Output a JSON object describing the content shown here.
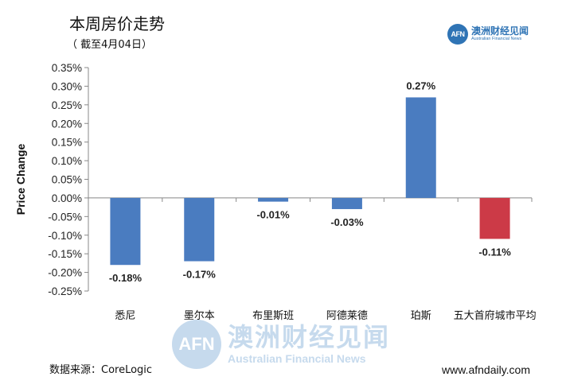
{
  "header": {
    "title": "本周房价走势",
    "subtitle": "（ 截至4月04日）"
  },
  "logo": {
    "badge": "AFN",
    "name_cn": "澳洲财经见闻",
    "name_en": "Australian Financial News"
  },
  "watermark": {
    "badge": "AFN",
    "name_cn": "澳洲财经见闻",
    "name_en": "Australian Financial News"
  },
  "footer": {
    "source": "数据来源：CoreLogic",
    "url": "www.afndaily.com"
  },
  "colors": {
    "positive_bar": "#4a7cc0",
    "average_bar": "#cc3a47"
  },
  "chart_data": {
    "type": "bar",
    "title": "本周房价走势",
    "ylabel": "Price Change",
    "xlabel": "",
    "categories": [
      "悉尼",
      "墨尔本",
      "布里斯班",
      "阿德莱德",
      "珀斯",
      "五大首府城市平均"
    ],
    "values": [
      -0.18,
      -0.17,
      -0.01,
      -0.03,
      0.27,
      -0.11
    ],
    "data_labels": [
      "-0.18%",
      "-0.17%",
      "-0.01%",
      "-0.03%",
      "0.27%",
      "-0.11%"
    ],
    "highlight_index": 5,
    "ylim": [
      -0.25,
      0.35
    ],
    "ytick_step": 0.05,
    "ytick_labels": [
      "0.35%",
      "0.30%",
      "0.25%",
      "0.20%",
      "0.15%",
      "0.10%",
      "0.05%",
      "0.00%",
      "-0.05%",
      "-0.10%",
      "-0.15%",
      "-0.20%",
      "-0.25%"
    ],
    "grid": false
  }
}
